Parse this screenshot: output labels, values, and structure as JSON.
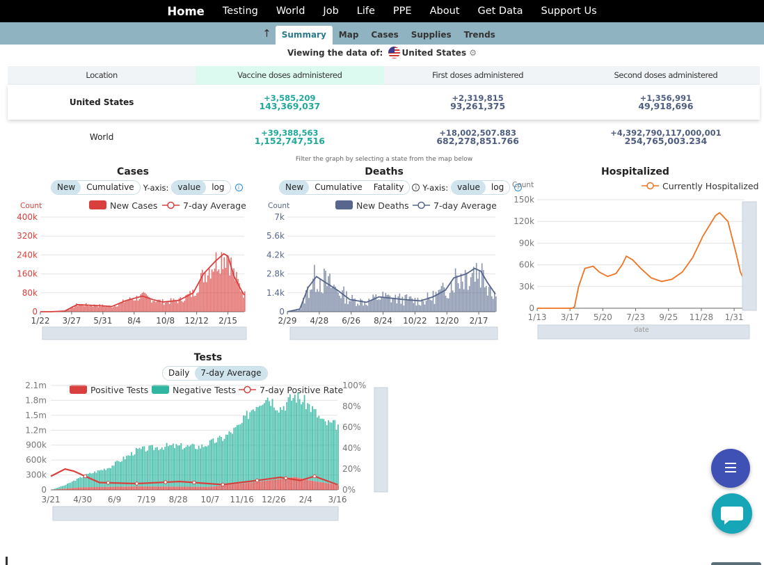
{
  "nav": {
    "items": [
      "Home",
      "Testing",
      "World",
      "Job",
      "Life",
      "PPE",
      "About",
      "Get Data",
      "Support Us"
    ]
  },
  "subnav": {
    "tabs": [
      "Summary",
      "Map",
      "Cases",
      "Supplies",
      "Trends"
    ],
    "active": "Summary"
  },
  "viewing": {
    "prefix": "Viewing the data of:",
    "region": "United States"
  },
  "vaccine_table": {
    "headers": [
      "Location",
      "Vaccine doses administered",
      "First doses administered",
      "Second doses administered"
    ],
    "rows": [
      {
        "location": "United States",
        "doses_inc": "+3,585,209",
        "doses": "143,369,037",
        "first_inc": "+2,319,815",
        "first": "93,261,375",
        "second_inc": "+1,356,991",
        "second": "49,918,696"
      },
      {
        "location": "World",
        "doses_inc": "+39,388,563",
        "doses": "1,152,747,516",
        "first_inc": "+18,002,507.883",
        "first": "682,278,851.766",
        "second_inc": "+4,392,790,117,000,001",
        "second": "254,765,003.234"
      }
    ]
  },
  "filter_note": "Filter the graph by selecting a state from the map below",
  "controls": {
    "new": "New",
    "cumulative": "Cumulative",
    "fatality": "Fatality",
    "yaxis": "Y-axis:",
    "value": "value",
    "log": "log",
    "daily": "Daily",
    "avg7": "7-day Average"
  },
  "colors": {
    "cases": "#d9403d",
    "deaths": "#56668c",
    "hosp": "#ee7322",
    "neg": "#2fb5a0",
    "teal": "#22a89a"
  },
  "chart_data": [
    {
      "type": "bar",
      "title": "Cases",
      "ylabel": "Count",
      "legend": [
        "New Cases",
        "7-day Average"
      ],
      "xticks": [
        "1/22",
        "3/27",
        "5/31",
        "8/4",
        "10/8",
        "12/12",
        "2/15"
      ],
      "yticks": [
        "0",
        "80k",
        "160k",
        "240k",
        "320k",
        "400k"
      ],
      "ylim": [
        0,
        400000
      ],
      "avg_points": [
        [
          0,
          0
        ],
        [
          0.05,
          0
        ],
        [
          0.12,
          3000
        ],
        [
          0.18,
          30000
        ],
        [
          0.3,
          25000
        ],
        [
          0.35,
          22000
        ],
        [
          0.42,
          47000
        ],
        [
          0.5,
          66000
        ],
        [
          0.55,
          52000
        ],
        [
          0.6,
          41000
        ],
        [
          0.68,
          48000
        ],
        [
          0.75,
          80000
        ],
        [
          0.8,
          160000
        ],
        [
          0.86,
          215000
        ],
        [
          0.9,
          245000
        ],
        [
          0.92,
          235000
        ],
        [
          0.95,
          150000
        ],
        [
          0.98,
          100000
        ],
        [
          1,
          70000
        ]
      ]
    },
    {
      "type": "bar",
      "title": "Deaths",
      "ylabel": "Count",
      "legend": [
        "New Deaths",
        "7-day Average"
      ],
      "xticks": [
        "2/29",
        "4/28",
        "6/26",
        "8/24",
        "10/22",
        "12/20",
        "2/17"
      ],
      "yticks": [
        "0",
        "1.4k",
        "2.8k",
        "4.2k",
        "5.6k",
        "7k"
      ],
      "ylim": [
        0,
        7000
      ],
      "avg_points": [
        [
          0,
          0
        ],
        [
          0.06,
          200
        ],
        [
          0.1,
          1800
        ],
        [
          0.14,
          2600
        ],
        [
          0.18,
          2200
        ],
        [
          0.24,
          1600
        ],
        [
          0.3,
          900
        ],
        [
          0.38,
          700
        ],
        [
          0.44,
          1100
        ],
        [
          0.5,
          1000
        ],
        [
          0.56,
          900
        ],
        [
          0.64,
          800
        ],
        [
          0.7,
          1100
        ],
        [
          0.76,
          1600
        ],
        [
          0.8,
          2500
        ],
        [
          0.86,
          2800
        ],
        [
          0.9,
          3200
        ],
        [
          0.93,
          3000
        ],
        [
          0.96,
          2200
        ],
        [
          1,
          1300
        ]
      ]
    },
    {
      "type": "line",
      "title": "Hospitalized",
      "ylabel": "Count",
      "xlabel": "date",
      "legend": [
        "Currently Hospitalized"
      ],
      "xticks": [
        "1/13",
        "3/17",
        "5/20",
        "7/23",
        "9/25",
        "11/28",
        "1/31"
      ],
      "yticks": [
        "0",
        "30k",
        "60k",
        "90k",
        "120k",
        "150k"
      ],
      "ylim": [
        0,
        150000
      ],
      "points": [
        [
          0,
          0
        ],
        [
          0.17,
          0
        ],
        [
          0.18,
          2000
        ],
        [
          0.2,
          30000
        ],
        [
          0.23,
          55000
        ],
        [
          0.27,
          58000
        ],
        [
          0.3,
          50000
        ],
        [
          0.34,
          44000
        ],
        [
          0.38,
          48000
        ],
        [
          0.41,
          60000
        ],
        [
          0.43,
          72000
        ],
        [
          0.46,
          67000
        ],
        [
          0.5,
          55000
        ],
        [
          0.55,
          42000
        ],
        [
          0.6,
          37000
        ],
        [
          0.65,
          40000
        ],
        [
          0.7,
          50000
        ],
        [
          0.75,
          70000
        ],
        [
          0.8,
          100000
        ],
        [
          0.86,
          128000
        ],
        [
          0.88,
          132000
        ],
        [
          0.92,
          120000
        ],
        [
          0.96,
          75000
        ],
        [
          0.98,
          50000
        ],
        [
          1,
          38000
        ]
      ]
    },
    {
      "type": "bar",
      "title": "Tests",
      "legend": [
        "Positive Tests",
        "Negative Tests",
        "7-day Positive Rate"
      ],
      "xticks": [
        "3/21",
        "4/30",
        "6/9",
        "7/19",
        "8/28",
        "10/7",
        "11/16",
        "12/26",
        "2/4",
        "3/16"
      ],
      "yticks": [
        "0",
        "300k",
        "600k",
        "900k",
        "1.2m",
        "1.5m",
        "1.8m",
        "2.1m"
      ],
      "y2ticks": [
        "0%",
        "20%",
        "40%",
        "60%",
        "80%",
        "100%"
      ],
      "ylim": [
        0,
        2100000
      ],
      "total_points": [
        [
          0,
          0
        ],
        [
          0.05,
          100000
        ],
        [
          0.12,
          300000
        ],
        [
          0.2,
          450000
        ],
        [
          0.3,
          800000
        ],
        [
          0.4,
          880000
        ],
        [
          0.52,
          870000
        ],
        [
          0.6,
          1050000
        ],
        [
          0.66,
          1300000
        ],
        [
          0.7,
          1650000
        ],
        [
          0.75,
          1900000
        ],
        [
          0.8,
          1650000
        ],
        [
          0.85,
          1900000
        ],
        [
          0.9,
          1700000
        ],
        [
          0.95,
          1350000
        ],
        [
          1,
          1300000
        ]
      ],
      "pos_points": [
        [
          0,
          0
        ],
        [
          0.1,
          50000
        ],
        [
          0.3,
          70000
        ],
        [
          0.55,
          60000
        ],
        [
          0.7,
          150000
        ],
        [
          0.8,
          220000
        ],
        [
          0.85,
          260000
        ],
        [
          0.9,
          190000
        ],
        [
          1,
          100000
        ]
      ],
      "rate_points": [
        [
          0,
          0.13
        ],
        [
          0.05,
          0.2
        ],
        [
          0.08,
          0.18
        ],
        [
          0.12,
          0.13
        ],
        [
          0.17,
          0.07
        ],
        [
          0.3,
          0.06
        ],
        [
          0.45,
          0.08
        ],
        [
          0.6,
          0.05
        ],
        [
          0.72,
          0.09
        ],
        [
          0.8,
          0.12
        ],
        [
          0.87,
          0.09
        ],
        [
          0.92,
          0.13
        ],
        [
          1,
          0.05
        ]
      ]
    }
  ]
}
